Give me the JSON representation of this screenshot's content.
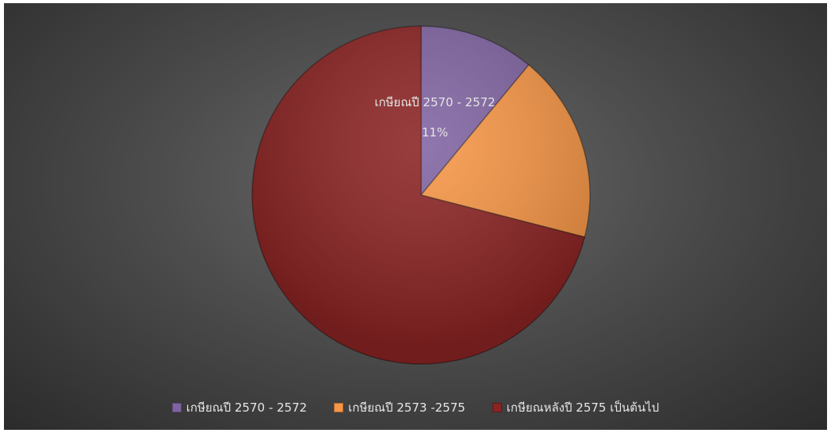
{
  "chart_data": {
    "type": "pie",
    "slices": [
      {
        "label": "เกษียณปี 2570 - 2572",
        "value": 11,
        "color": "#8064a2"
      },
      {
        "label": "เกษียณปี 2573 -2575",
        "value": 18,
        "color": "#f79646"
      },
      {
        "label": "เกษียณหลังปี 2575 เป็นต้นไป",
        "value": 71,
        "color": "#8b2323"
      }
    ],
    "data_labels": [
      {
        "category": "เกษียณปี 2570 - 2572",
        "percent": "11%"
      }
    ],
    "legend_position": "bottom",
    "background": "dark-gray"
  }
}
